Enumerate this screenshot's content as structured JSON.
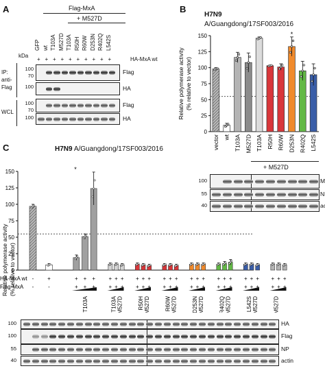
{
  "panel_a": {
    "label": "A",
    "group_title": "Flag-MxA",
    "subgroup_title": "+ M527D",
    "kda": "kDa",
    "lanes": [
      "GFP",
      "wt",
      "T103A",
      "M527D",
      "T103A",
      "R50H",
      "R60W",
      "D253N",
      "R402Q",
      "L542S"
    ],
    "ha_mxa_row": {
      "label": "HA-MxA wt",
      "signs": [
        "+",
        "+",
        "+",
        "+",
        "+",
        "+",
        "+",
        "+",
        "+",
        "+"
      ]
    },
    "ip_label": "IP:\nanti-\nFlag",
    "wcl_label": "WCL",
    "blots": [
      {
        "name": "Flag",
        "mw": [
          "100",
          "70"
        ]
      },
      {
        "name": "HA",
        "mw": [
          "100"
        ]
      },
      {
        "name": "Flag",
        "mw": [
          "100",
          "70"
        ]
      },
      {
        "name": "HA",
        "mw": [
          "100"
        ]
      }
    ]
  },
  "panel_b": {
    "label": "B",
    "virus_bold": "H7N9",
    "virus_strain": "A/Guangdong/17SF003/2016",
    "subgroup_title": "+ M527D",
    "blots": [
      {
        "name": "MxA",
        "mw": "100"
      },
      {
        "name": "NP",
        "mw": "55"
      },
      {
        "name": "actin",
        "mw": "40"
      }
    ]
  },
  "panel_c": {
    "label": "C",
    "virus_bold": "H7N9",
    "virus_strain": "A/Guangdong/17SF003/2016",
    "ha_row_label": "HA-MxA wt",
    "flag_row_label": "Flag-MxA",
    "blots": [
      {
        "name": "HA",
        "mw": "100"
      },
      {
        "name": "Flag",
        "mw": "100"
      },
      {
        "name": "NP",
        "mw": "55"
      },
      {
        "name": "actin",
        "mw": "40"
      }
    ]
  },
  "chart_data": [
    {
      "type": "bar",
      "panel": "B",
      "ylabel": "Relative polymerase activity\n(% relative to vector)",
      "ylim": [
        0,
        150
      ],
      "yticks": [
        0,
        25,
        50,
        75,
        100,
        125,
        150
      ],
      "reference_line": 55,
      "categories": [
        "vector",
        "wt",
        "T103A",
        "M527D",
        "T103A",
        "R50H",
        "R60W",
        "D253N",
        "R402Q",
        "L542S"
      ],
      "values": [
        98,
        10,
        116,
        108,
        146,
        103,
        101,
        133,
        95,
        89
      ],
      "errors": [
        2,
        3,
        8,
        15,
        2,
        1,
        5,
        15,
        15,
        17
      ],
      "colors": [
        "#9a9a9a",
        "#ffffff",
        "#b4b4b4",
        "#8c8c8c",
        "#dcdcdc",
        "#d9373a",
        "#d9373a",
        "#f08a2c",
        "#63b946",
        "#3a5ea8"
      ],
      "hatched": [
        true,
        false,
        false,
        false,
        false,
        false,
        false,
        false,
        false,
        false
      ],
      "significance": [
        {
          "category_index": 7,
          "text": "*"
        }
      ]
    },
    {
      "type": "bar",
      "panel": "C",
      "ylabel": "Relative polymerase activity\n(% relative to vector)",
      "ylim": [
        0,
        150
      ],
      "yticks": [
        0,
        25,
        50,
        75,
        100,
        125,
        150
      ],
      "reference_line": 55,
      "groups": [
        {
          "label": "",
          "values": [
            97
          ],
          "errors": [
            3
          ],
          "color": "#9a9a9a",
          "hatched": true,
          "ha": [
            "-"
          ],
          "flag": [
            "-"
          ]
        },
        {
          "label": "",
          "values": [
            8
          ],
          "errors": [
            2
          ],
          "color": "#ffffff",
          "hatched": false,
          "ha": [
            "+"
          ],
          "flag": [
            "-"
          ]
        },
        {
          "label": "T103A",
          "values": [
            19,
            51,
            124
          ],
          "errors": [
            4,
            4,
            25
          ],
          "color": "#a0a0a0",
          "hatched": false,
          "ha": [
            "+",
            "+",
            "+"
          ],
          "flag": [
            "+",
            "+",
            "+"
          ]
        },
        {
          "label": "T103A\n+M527D",
          "values": [
            9,
            9,
            8
          ],
          "errors": [
            2,
            2,
            2
          ],
          "color": "#d4d4d4",
          "hatched": false,
          "ha": [
            "+",
            "+",
            "+"
          ],
          "flag": [
            "+",
            "+",
            "+"
          ]
        },
        {
          "label": "R50H\n+M527D",
          "values": [
            9,
            8,
            7
          ],
          "errors": [
            2,
            2,
            2
          ],
          "color": "#d9373a",
          "hatched": false,
          "ha": [
            "+",
            "+",
            "+"
          ],
          "flag": [
            "+",
            "+",
            "+"
          ]
        },
        {
          "label": "R60W\n+M527D",
          "values": [
            8,
            8,
            7
          ],
          "errors": [
            2,
            2,
            2
          ],
          "color": "#d9373a",
          "hatched": false,
          "ha": [
            "+",
            "+",
            "+"
          ],
          "flag": [
            "+",
            "+",
            "+"
          ]
        },
        {
          "label": "D253N\n+M527D",
          "values": [
            9,
            9,
            9
          ],
          "errors": [
            2,
            2,
            2
          ],
          "color": "#f08a2c",
          "hatched": false,
          "ha": [
            "+",
            "+",
            "+"
          ],
          "flag": [
            "+",
            "+",
            "+"
          ]
        },
        {
          "label": "R402Q\n+M527D",
          "values": [
            9,
            10,
            12
          ],
          "errors": [
            2,
            3,
            4
          ],
          "color": "#63b946",
          "hatched": false,
          "ha": [
            "+",
            "+",
            "+"
          ],
          "flag": [
            "+",
            "+",
            "+"
          ]
        },
        {
          "label": "L542S\n+M527D",
          "values": [
            9,
            9,
            8
          ],
          "errors": [
            2,
            2,
            2
          ],
          "color": "#3a5ea8",
          "hatched": false,
          "ha": [
            "+",
            "+",
            "+"
          ],
          "flag": [
            "+",
            "+",
            "+"
          ]
        },
        {
          "label": "M527D",
          "values": [
            9,
            9,
            8
          ],
          "errors": [
            2,
            2,
            2
          ],
          "color": "#b4b4b4",
          "hatched": false,
          "ha": [
            "+",
            "+",
            "+"
          ],
          "flag": [
            "+",
            "+",
            "+"
          ]
        }
      ],
      "significance": [
        {
          "group_index": 2,
          "bar_index": 2,
          "text": "*"
        }
      ]
    }
  ]
}
